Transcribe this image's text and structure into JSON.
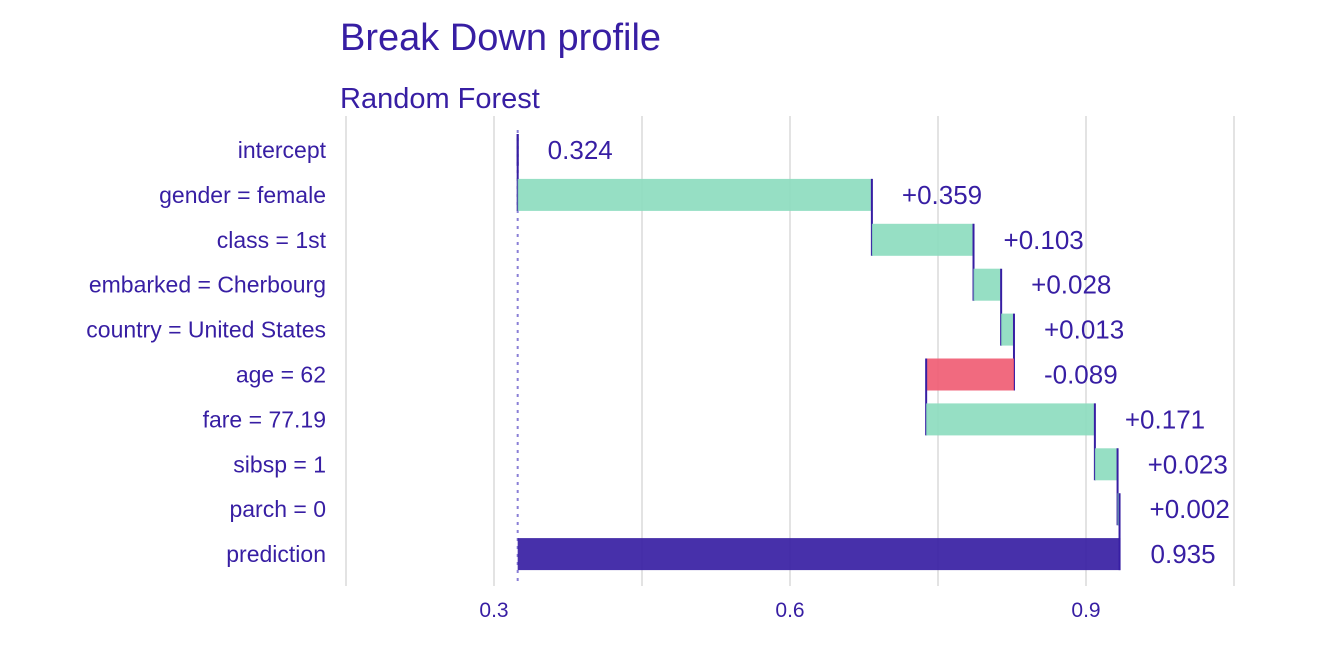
{
  "chart_data": {
    "type": "bar",
    "title": "Break Down profile",
    "subtitle": "Random Forest",
    "xlabel": "",
    "ylabel": "",
    "xlim": [
      0.15,
      1.05
    ],
    "xticks": [
      0.3,
      0.6,
      0.9
    ],
    "xtick_labels": [
      "0.3",
      "0.6",
      "0.9"
    ],
    "grid": true,
    "baseline": 0.324,
    "colors": {
      "positive": "#8bdcbe",
      "negative": "#f05a71",
      "prediction": "#371ea3",
      "text": "#371ea3"
    },
    "bars": [
      {
        "variable": "intercept",
        "start": 0.324,
        "end": 0.324,
        "label": "0.324",
        "kind": "intercept"
      },
      {
        "variable": "gender = female",
        "start": 0.324,
        "end": 0.683,
        "label": "+0.359",
        "kind": "positive"
      },
      {
        "variable": "class = 1st",
        "start": 0.683,
        "end": 0.786,
        "label": "+0.103",
        "kind": "positive"
      },
      {
        "variable": "embarked = Cherbourg",
        "start": 0.786,
        "end": 0.814,
        "label": "+0.028",
        "kind": "positive"
      },
      {
        "variable": "country = United States",
        "start": 0.814,
        "end": 0.827,
        "label": "+0.013",
        "kind": "positive"
      },
      {
        "variable": "age = 62",
        "start": 0.827,
        "end": 0.738,
        "label": "-0.089",
        "kind": "negative"
      },
      {
        "variable": "fare = 77.19",
        "start": 0.738,
        "end": 0.909,
        "label": "+0.171",
        "kind": "positive"
      },
      {
        "variable": "sibsp = 1",
        "start": 0.909,
        "end": 0.932,
        "label": "+0.023",
        "kind": "positive"
      },
      {
        "variable": "parch = 0",
        "start": 0.932,
        "end": 0.934,
        "label": "+0.002",
        "kind": "positive"
      },
      {
        "variable": "prediction",
        "start": 0.324,
        "end": 0.935,
        "label": "0.935",
        "kind": "prediction"
      }
    ]
  }
}
